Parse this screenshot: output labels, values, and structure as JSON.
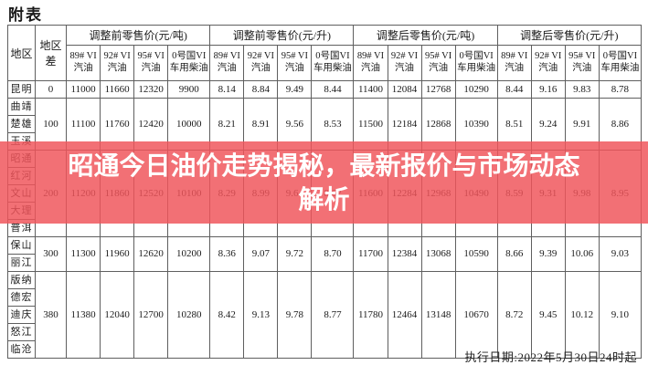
{
  "page_title": "附表",
  "banner": {
    "line1": "昭通今日油价走势揭秘，最新报价与市场动态",
    "line2": "解析",
    "background_color": "#f0555a",
    "text_color": "#ffffff"
  },
  "footer": {
    "execution_date": "执行日期:2022年5月30日24时起"
  },
  "table": {
    "region_header": "地区",
    "region_diff_header": "地区差",
    "group_headers": [
      "调整前零售价(元/吨)",
      "调整前零售价(元/升)",
      "调整后零售价(元/吨)",
      "调整后零售价(元/升)"
    ],
    "sub_headers": [
      "89# VI汽油",
      "92# VI汽油",
      "95# VI汽油",
      "0号国VI车用柴油"
    ],
    "row_groups": [
      {
        "regions": [
          "昆明"
        ],
        "diff": "0",
        "values": [
          "11000",
          "11660",
          "12320",
          "9900",
          "8.14",
          "8.84",
          "9.49",
          "8.44",
          "11400",
          "12084",
          "12768",
          "10290",
          "8.44",
          "9.16",
          "9.83",
          "8.78"
        ]
      },
      {
        "regions": [
          "曲靖",
          "楚雄",
          "玉溪"
        ],
        "diff": "100",
        "values": [
          "11100",
          "11760",
          "12420",
          "10000",
          "8.21",
          "8.91",
          "9.56",
          "8.53",
          "11500",
          "12184",
          "12868",
          "10390",
          "8.51",
          "9.24",
          "9.91",
          "8.86"
        ]
      },
      {
        "regions": [
          "昭通",
          "红河",
          "文山",
          "大理",
          "普洱"
        ],
        "diff": "200",
        "values": [
          "11200",
          "11860",
          "12520",
          "10100",
          "8.29",
          "8.99",
          "9.64",
          "8.62",
          "11600",
          "12284",
          "12968",
          "10490",
          "8.59",
          "9.31",
          "9.98",
          "8.95"
        ]
      },
      {
        "regions": [
          "保山",
          "丽江"
        ],
        "diff": "300",
        "values": [
          "11300",
          "11960",
          "12620",
          "10200",
          "8.36",
          "9.07",
          "9.72",
          "8.70",
          "11700",
          "12384",
          "13068",
          "10590",
          "8.66",
          "9.39",
          "10.06",
          "9.03"
        ]
      },
      {
        "regions": [
          "版纳",
          "德宏",
          "迪庆",
          "怒江",
          "临沧"
        ],
        "diff": "380",
        "values": [
          "11380",
          "12040",
          "12700",
          "10280",
          "8.42",
          "9.13",
          "9.78",
          "8.77",
          "11780",
          "12464",
          "13148",
          "10670",
          "8.72",
          "9.45",
          "10.12",
          "9.10"
        ]
      }
    ]
  }
}
